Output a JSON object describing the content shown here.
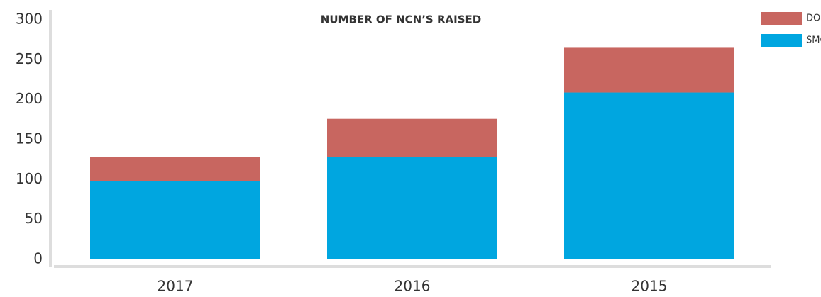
{
  "chart_data": {
    "type": "stacked_bar",
    "title": "NUMBER OF NCN’S RAISED",
    "categories": [
      "2017",
      "2016",
      "2015"
    ],
    "series": [
      {
        "name": "SMC",
        "color": "#00a6e0",
        "values": [
          98,
          128,
          209
        ]
      },
      {
        "name": "DOC",
        "color": "#c86660",
        "values": [
          30,
          48,
          56
        ]
      }
    ],
    "ylim": [
      0,
      300
    ],
    "yticks": [
      0,
      50,
      100,
      150,
      200,
      250,
      300
    ],
    "legend": "top-right",
    "grid": false
  }
}
